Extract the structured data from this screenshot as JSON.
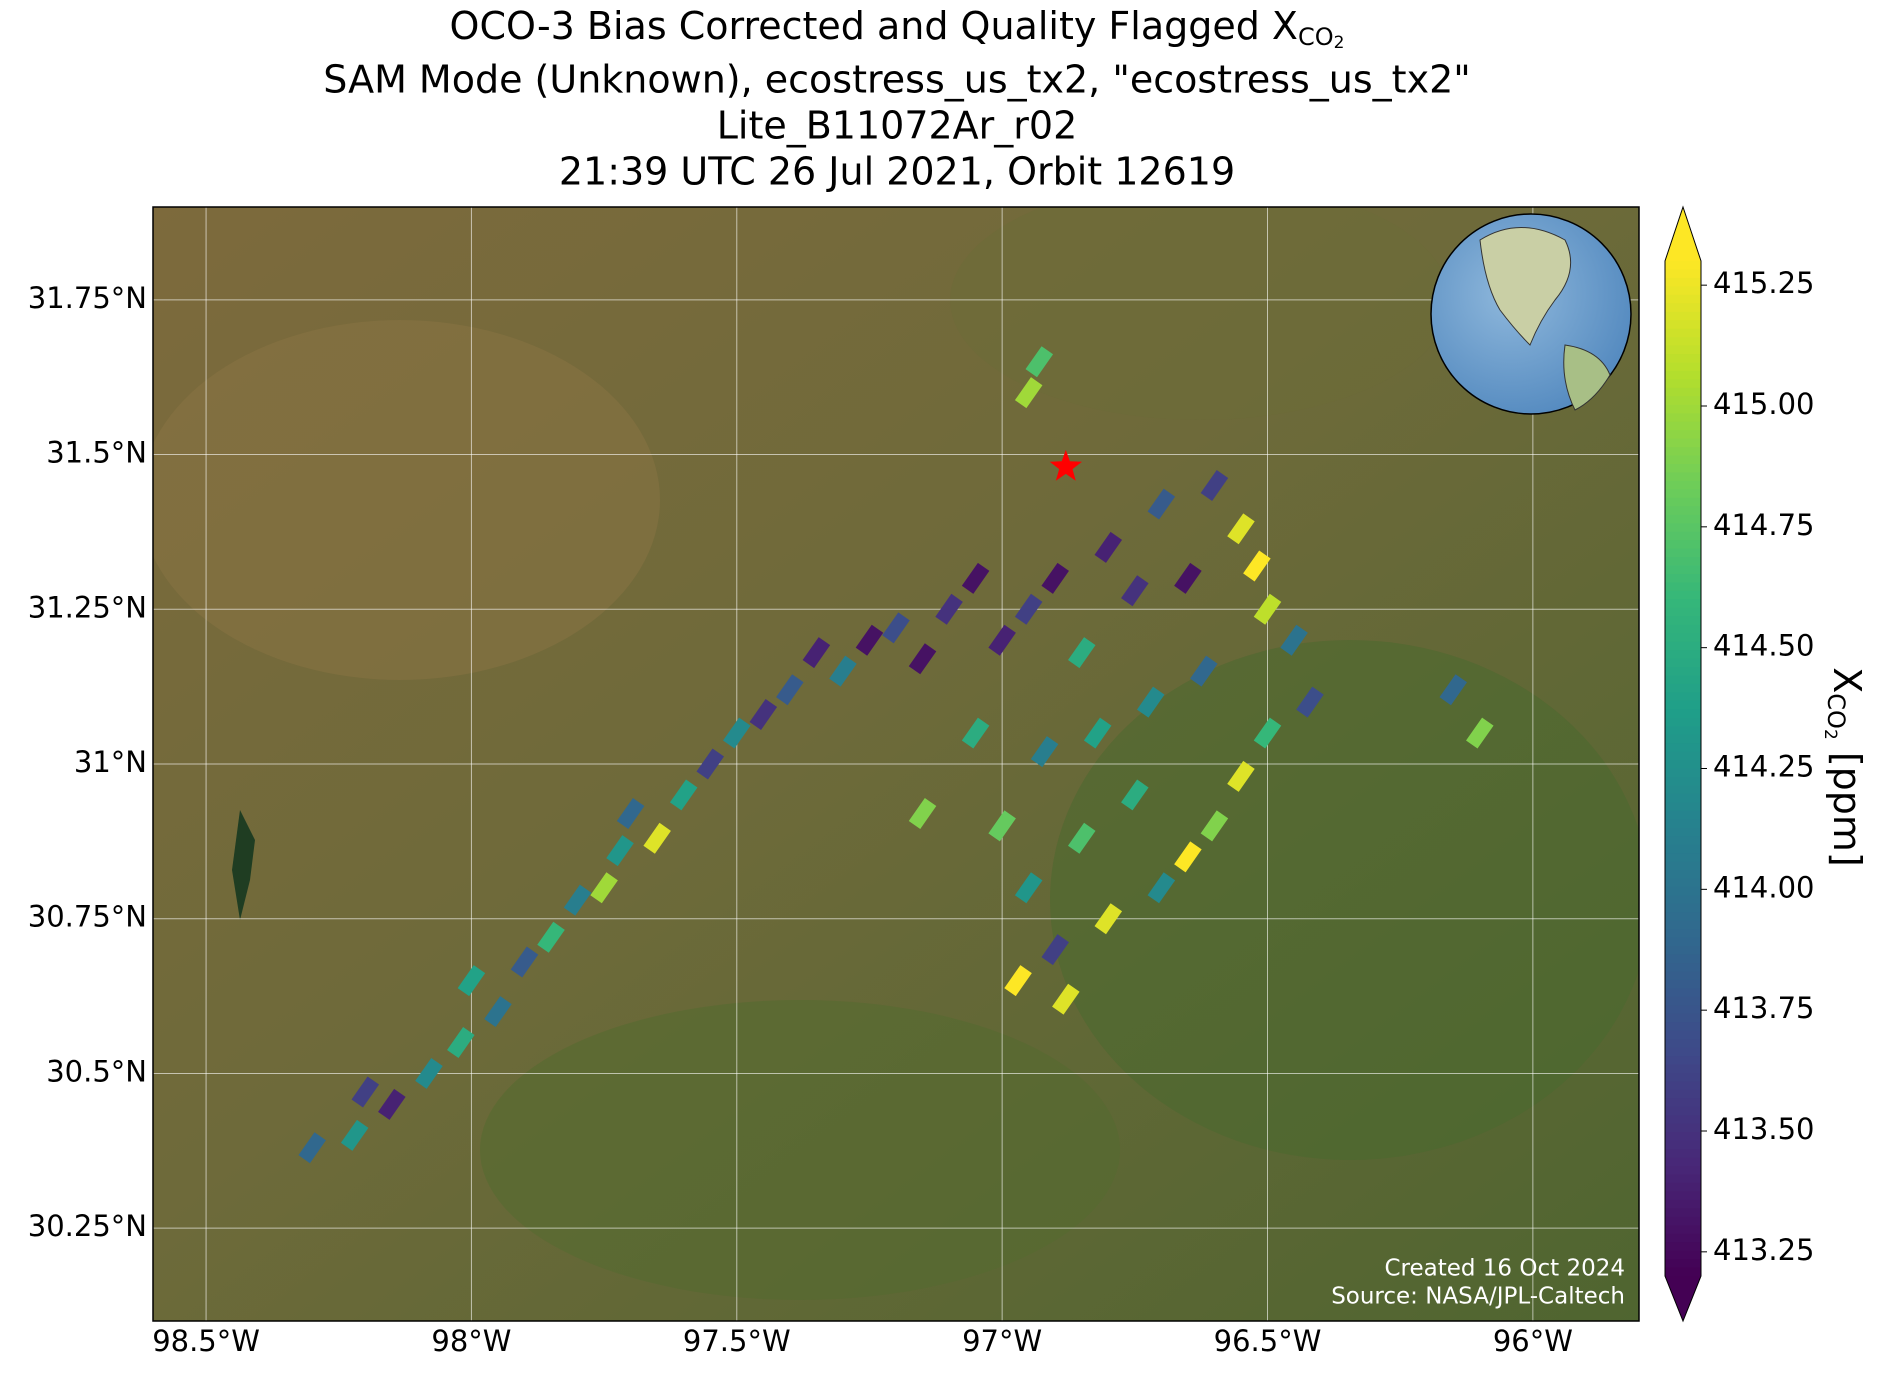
{
  "title": {
    "line1": "OCO-3 Bias Corrected and Quality Flagged X",
    "line1_sub": "CO",
    "line1_subsub": "2",
    "line2": "SAM Mode (Unknown), ecostress_us_tx2, \"ecostress_us_tx2\"",
    "line3": "Lite_B11072Ar_r02",
    "line4": "21:39 UTC 26 Jul 2021, Orbit 12619"
  },
  "map": {
    "xlim": [
      -98.6,
      -95.8
    ],
    "ylim": [
      30.1,
      31.9
    ],
    "xticks": [
      {
        "value": -98.5,
        "label": "98.5°W"
      },
      {
        "value": -98,
        "label": "98°W"
      },
      {
        "value": -97.5,
        "label": "97.5°W"
      },
      {
        "value": -97,
        "label": "97°W"
      },
      {
        "value": -96.5,
        "label": "96.5°W"
      },
      {
        "value": -96,
        "label": "96°W"
      }
    ],
    "yticks": [
      {
        "value": 30.25,
        "label": "30.25°N"
      },
      {
        "value": 30.5,
        "label": "30.5°N"
      },
      {
        "value": 30.75,
        "label": "30.75°N"
      },
      {
        "value": 31,
        "label": "31°N"
      },
      {
        "value": 31.25,
        "label": "31.25°N"
      },
      {
        "value": 31.5,
        "label": "31.5°N"
      },
      {
        "value": 31.75,
        "label": "31.75°N"
      }
    ],
    "grid": true,
    "target": {
      "lon": -96.88,
      "lat": 31.48,
      "color": "#ff0000"
    },
    "credit": [
      "Created 16 Oct 2024",
      "Source: NASA/JPL-Caltech"
    ]
  },
  "colorbar": {
    "colormap": "viridis",
    "clim": [
      413.2,
      415.3
    ],
    "label": "X",
    "label_sub": "CO",
    "label_subsub": "2",
    "label_unit": " [ppm]",
    "ticks": [
      413.25,
      {
        "value": 413.5,
        "label": "413.50"
      },
      413.75,
      {
        "value": 414,
        "label": "414.00"
      },
      414.25,
      {
        "value": 414.5,
        "label": "414.50"
      },
      414.75,
      {
        "value": 415,
        "label": "415.00"
      },
      415.25
    ]
  },
  "soundings": {
    "lon": [
      -98.3,
      -98.22,
      -98.15,
      -98.08,
      -98.2,
      -98.02,
      -97.95,
      -98.0,
      -97.9,
      -97.85,
      -97.8,
      -97.75,
      -97.72,
      -97.65,
      -97.7,
      -97.6,
      -97.55,
      -97.5,
      -97.45,
      -97.4,
      -97.35,
      -97.3,
      -97.25,
      -97.2,
      -97.15,
      -97.1,
      -97.05,
      -97.0,
      -96.95,
      -96.9,
      -96.85,
      -96.8,
      -96.75,
      -96.7,
      -96.65,
      -96.6,
      -96.55,
      -96.52,
      -96.5,
      -96.45,
      -96.42,
      -96.5,
      -96.55,
      -96.6,
      -96.65,
      -96.7,
      -96.75,
      -96.8,
      -96.85,
      -96.9,
      -96.95,
      -96.97,
      -96.88,
      -97.0,
      -96.92,
      -96.82,
      -96.72,
      -96.62,
      -97.05,
      -97.15,
      -96.95,
      -96.93,
      -96.15,
      -96.1
    ],
    "lat": [
      30.38,
      30.4,
      30.45,
      30.5,
      30.47,
      30.55,
      30.6,
      30.65,
      30.68,
      30.72,
      30.78,
      30.8,
      30.86,
      30.88,
      30.92,
      30.95,
      31.0,
      31.05,
      31.08,
      31.12,
      31.18,
      31.15,
      31.2,
      31.22,
      31.17,
      31.25,
      31.3,
      31.2,
      31.25,
      31.3,
      31.18,
      31.35,
      31.28,
      31.42,
      31.3,
      31.45,
      31.38,
      31.32,
      31.25,
      31.2,
      31.1,
      31.05,
      30.98,
      30.9,
      30.85,
      30.8,
      30.95,
      30.75,
      30.88,
      30.7,
      30.8,
      30.65,
      30.62,
      30.9,
      31.02,
      31.05,
      31.1,
      31.15,
      31.05,
      30.92,
      31.6,
      31.65,
      31.12,
      31.05
    ],
    "xco2": [
      413.9,
      414.3,
      413.4,
      414.2,
      413.6,
      414.5,
      414.0,
      414.4,
      413.8,
      414.6,
      414.1,
      415.0,
      414.3,
      415.2,
      413.9,
      414.4,
      413.6,
      414.2,
      413.5,
      413.8,
      413.4,
      414.1,
      413.3,
      413.7,
      413.3,
      413.5,
      413.3,
      413.4,
      413.6,
      413.3,
      414.5,
      413.4,
      413.5,
      413.8,
      413.3,
      413.6,
      415.2,
      415.3,
      415.1,
      414.0,
      413.7,
      414.6,
      415.2,
      414.9,
      415.3,
      414.2,
      414.5,
      415.2,
      414.7,
      413.6,
      414.3,
      415.3,
      415.2,
      414.8,
      414.1,
      414.4,
      414.2,
      413.9,
      414.5,
      414.9,
      415.0,
      414.7,
      413.9,
      414.9
    ]
  }
}
